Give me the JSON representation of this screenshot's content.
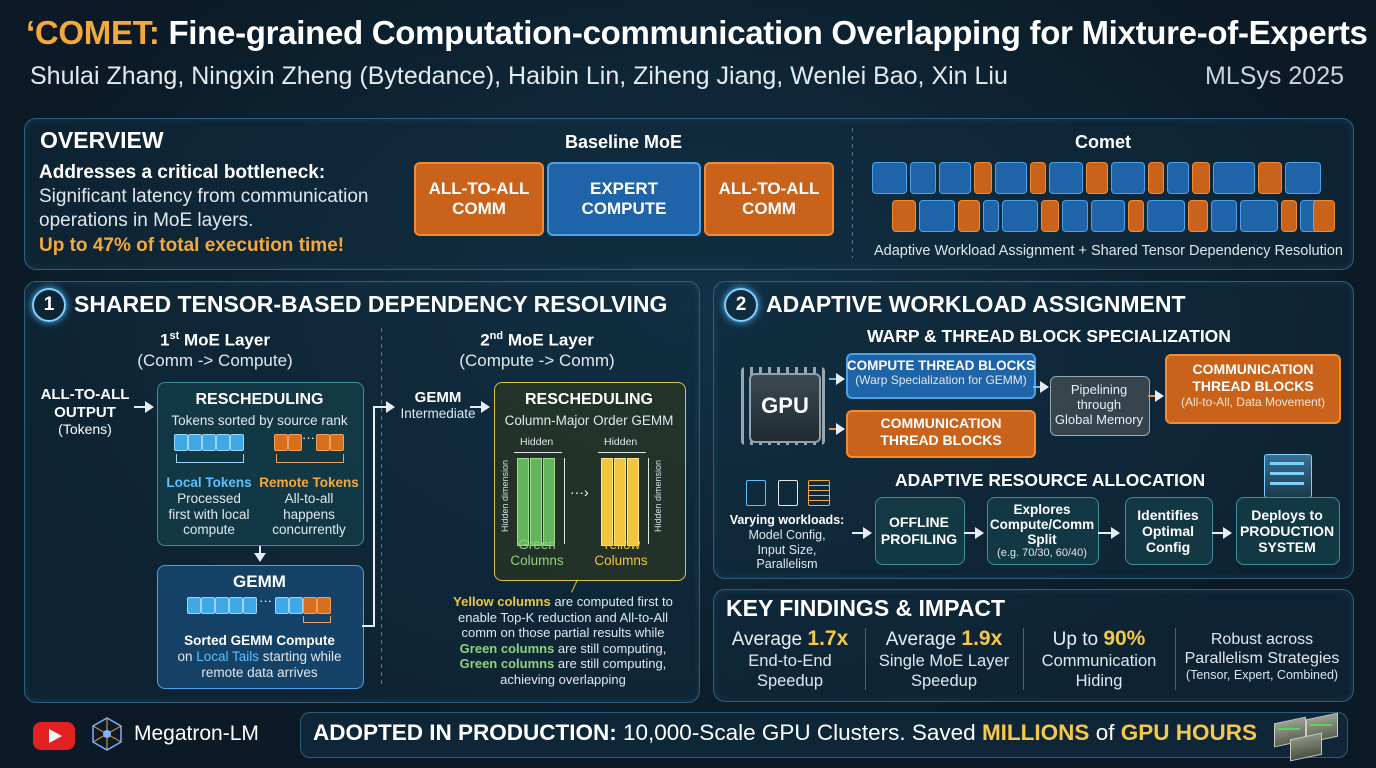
{
  "header": {
    "title_accent": "‘COMET:",
    "title_rest": "Fine-grained Computation-communication Overlapping for Mixture-of-Experts",
    "authors": "Shulai Zhang, Ningxin Zheng (Bytedance), Haibin Lin, Ziheng Jiang, Wenlei Bao, Xin Liu",
    "venue": "MLSys 2025"
  },
  "overview": {
    "title": "OVERVIEW",
    "bottleneck": "Addresses a critical bottleneck:",
    "desc_line1": "Significant latency from communication",
    "desc_line2": "operations in MoE layers.",
    "highlight": "Up to 47% of total execution time!",
    "baseline_title": "Baseline MoE",
    "baseline_boxes": [
      {
        "line1": "ALL-TO-ALL",
        "line2": "COMM"
      },
      {
        "line1": "EXPERT",
        "line2": "COMPUTE"
      },
      {
        "line1": "ALL-TO-ALL",
        "line2": "COMM"
      }
    ],
    "comet_title": "Comet",
    "comet_caption": "Adaptive Workload Assignment + Shared Tensor Dependency Resolution"
  },
  "section1": {
    "number": "1",
    "title": "SHARED TENSOR-BASED DEPENDENCY RESOLVING",
    "layer1_title_pre": "1",
    "layer1_title_sup": "st",
    "layer1_title_post": " MoE Layer",
    "layer1_sub": "(Comm -> Compute)",
    "layer2_title_pre": "2",
    "layer2_title_sup": "nd",
    "layer2_title_post": " MoE Layer",
    "layer2_sub": "(Compute -> Comm)",
    "a2a_line1": "ALL-TO-ALL",
    "a2a_line2": "OUTPUT",
    "a2a_line3": "(Tokens)",
    "resched1_title": "RESCHEDULING",
    "resched1_sub": "Tokens sorted by source rank",
    "local_title": "Local Tokens",
    "local_line1": "Processed",
    "local_line2": "first with local",
    "local_line3": "compute",
    "remote_title": "Remote Tokens",
    "remote_line1": "All-to-all",
    "remote_line2": "happens",
    "remote_line3": "concurrently",
    "gemm_title": "GEMM",
    "gemm_line1": "Sorted GEMM Compute",
    "gemm_line2_pre": "on ",
    "gemm_line2_hl": "Local Tails",
    "gemm_line2_post": " starting while",
    "gemm_line3": "remote data arrives",
    "gemm_int_title": "GEMM",
    "gemm_int_sub": "Intermediate",
    "resched2_title": "RESCHEDULING",
    "resched2_sub": "Column-Major Order GEMM",
    "hidden": "Hidden",
    "hidden_dim": "Hidden dimension",
    "green_label1": "Green",
    "green_label2": "Columns",
    "yellow_label1": "Yellow",
    "yellow_label2": "Columns",
    "note_yellow": "Yellow columns",
    "note_l1": " are computed first to",
    "note_l2": "enable Top-K reduction and All-to-All",
    "note_l3": "comm on those partial results while",
    "note_green": "Green columns",
    "note_l4": " are still computing,",
    "note_l5": " are still computing,",
    "note_l6": "achieving overlapping"
  },
  "section2": {
    "number": "2",
    "title": "ADAPTIVE WORKLOAD ASSIGNMENT",
    "warp_title": "WARP & THREAD BLOCK SPECIALIZATION",
    "gpu_label": "GPU",
    "compute_tb_title": "COMPUTE THREAD BLOCKS",
    "compute_tb_sub": "(Warp Specialization for GEMM)",
    "comm_tb_line1": "COMMUNICATION",
    "comm_tb_line2": "THREAD BLOCKS",
    "pipe_line1": "Pipelining",
    "pipe_line2": "through",
    "pipe_line3": "Global Memory",
    "comm_tb2_line1": "COMMUNICATION",
    "comm_tb2_line2": "THREAD BLOCKS",
    "comm_tb2_sub": "(All-to-All, Data Movement)",
    "alloc_title": "ADAPTIVE RESOURCE ALLOCATION",
    "vary_title": "Varying workloads:",
    "vary_l1": "Model Config,",
    "vary_l2": "Input Size,",
    "vary_l3": "Parallelism",
    "offline_l1": "OFFLINE",
    "offline_l2": "PROFILING",
    "explore_l1": "Explores",
    "explore_l2": "Compute/Comm",
    "explore_l3": "Split",
    "explore_l4": "(e.g. 70/30, 60/40)",
    "ident_l1": "Identifies",
    "ident_l2": "Optimal",
    "ident_l3": "Config",
    "deploy_l1": "Deploys to",
    "deploy_l2": "PRODUCTION",
    "deploy_l3": "SYSTEM"
  },
  "findings": {
    "title": "KEY FINDINGS & IMPACT",
    "items": [
      {
        "pre": "Average ",
        "value": "1.7x",
        "l2": "End-to-End",
        "l3": "Speedup"
      },
      {
        "pre": "Average ",
        "value": "1.9x",
        "l2": "Single MoE Layer",
        "l3": "Speedup"
      },
      {
        "pre": "Up to ",
        "value": "90%",
        "l2": "Communication",
        "l3": "Hiding"
      }
    ],
    "robust_l1": "Robust across",
    "robust_l2": "Parallelism Strategies",
    "robust_l3": "(Tensor, Expert, Combined)"
  },
  "footer": {
    "megatron": "Megatron-LM",
    "adopted": "ADOPTED IN PRODUCTION:",
    "adopted_mid": " 10,000-Scale GPU Clusters. Saved ",
    "adopted_hl1": "MILLIONS",
    "adopted_of": " of ",
    "adopted_hl2": "GPU HOURS"
  }
}
